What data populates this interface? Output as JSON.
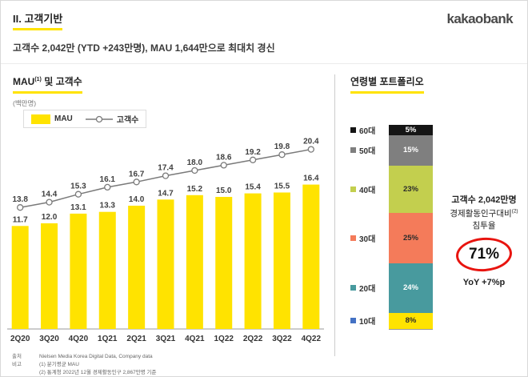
{
  "accent_color": "#ffe300",
  "header": {
    "section_title": "II. 고객기반",
    "logo_text": "kakaobank",
    "subtitle": "고객수 2,042만 (YTD +243만명), MAU 1,644만으로 최대치 경신"
  },
  "mau_section": {
    "title_main": "MAU",
    "title_sup": "(1)",
    "title_rest": " 및 고객수",
    "unit": "(백만명)",
    "legend_mau": "MAU",
    "legend_customers": "고객수"
  },
  "age_section": {
    "title": "연령별 포트폴리오",
    "annotation_line1": "고객수 2,042만명",
    "annotation_line2": "경제활동인구대비",
    "annotation_line2_sup": "(2)",
    "annotation_line3": "침투율",
    "penetration_value": "71%",
    "yoy": "YoY +7%p"
  },
  "chart_data": [
    {
      "type": "bar",
      "title": "MAU(1) 및 고객수",
      "ylabel": "(백만명)",
      "categories": [
        "2Q20",
        "3Q20",
        "4Q20",
        "1Q21",
        "2Q21",
        "3Q21",
        "4Q21",
        "1Q22",
        "2Q22",
        "3Q22",
        "4Q22"
      ],
      "series": [
        {
          "name": "MAU",
          "style": "bar",
          "color": "#ffe300",
          "values": [
            11.7,
            12.0,
            13.1,
            13.3,
            14.0,
            14.7,
            15.2,
            15.0,
            15.4,
            15.5,
            16.4
          ]
        },
        {
          "name": "고객수",
          "style": "line",
          "color": "#7a7a7a",
          "values": [
            13.8,
            14.4,
            15.3,
            16.1,
            16.7,
            17.4,
            18.0,
            18.6,
            19.2,
            19.8,
            20.4
          ]
        }
      ],
      "legend_position": "top-left",
      "grid": false
    },
    {
      "type": "bar",
      "subtype": "stacked-percentage",
      "title": "연령별 포트폴리오",
      "segments": [
        {
          "label": "60대",
          "value": 5,
          "color": "#151515",
          "marker_color": "#151515",
          "text_color": "#ffffff"
        },
        {
          "label": "50대",
          "value": 15,
          "color": "#7f7f7f",
          "marker_color": "#7f7f7f",
          "text_color": "#ffffff"
        },
        {
          "label": "40대",
          "value": 23,
          "color": "#c3cf4e",
          "marker_color": "#c3cf4e",
          "text_color": "#2b2b2b"
        },
        {
          "label": "30대",
          "value": 25,
          "color": "#f47b5a",
          "marker_color": "#f47b5a",
          "text_color": "#2b2b2b"
        },
        {
          "label": "20대",
          "value": 24,
          "color": "#489a9e",
          "marker_color": "#489a9e",
          "text_color": "#ffffff"
        },
        {
          "label": "10대",
          "value": 8,
          "color": "#ffe300",
          "marker_color": "#4472c4",
          "text_color": "#2b2b2b"
        }
      ]
    }
  ],
  "footer": {
    "source_label": "출처",
    "note_label": "비고",
    "source": "Nielsen Media Korea Digital Data, Company data",
    "note1": "(1) 분기평균 MAU",
    "note2": "(2) 통계청 2022년 12월 경제활동인구 2,867만명 기준"
  }
}
